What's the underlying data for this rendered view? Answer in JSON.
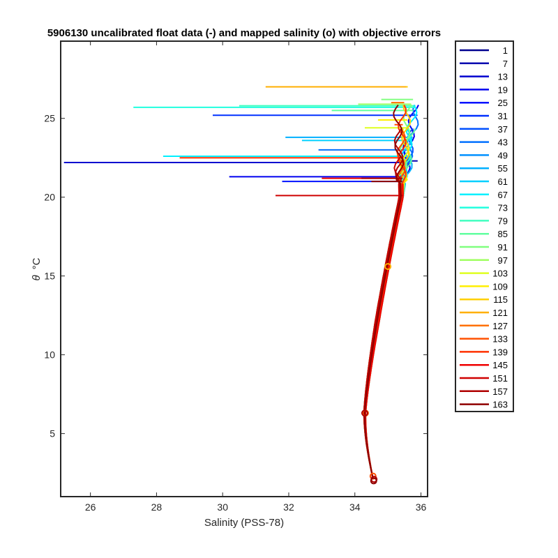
{
  "chart_data": {
    "type": "line",
    "title": "5906130 uncalibrated float data (-) and mapped salinity (o) with objective errors",
    "xlabel": "Salinity (PSS-78)",
    "ylabel_symbol": "θ",
    "ylabel_unit": "°C",
    "xlim": [
      25.1,
      36.2
    ],
    "ylim": [
      1.0,
      29.9
    ],
    "xticks": [
      26,
      28,
      30,
      32,
      34,
      36
    ],
    "yticks": [
      5,
      10,
      15,
      20,
      25
    ],
    "grid": false,
    "legend_position": "outside-right",
    "profile_axis_salinity": 34.3,
    "profile_deep_salinity": 34.55,
    "surface_temperature_range": [
      21.0,
      27.5
    ],
    "series": [
      {
        "name": "1",
        "color": "#00008f",
        "s_surface": 35.85,
        "spike": [
          23.0,
          35.3
        ]
      },
      {
        "name": "7",
        "color": "#0000af",
        "s_surface": 35.9,
        "spike": [
          22.3,
          35.9
        ]
      },
      {
        "name": "13",
        "color": "#0000cf",
        "s_surface": 35.8,
        "spike": [
          22.2,
          25.2
        ]
      },
      {
        "name": "19",
        "color": "#0000ef",
        "s_surface": 35.85,
        "spike": [
          21.3,
          30.2
        ]
      },
      {
        "name": "25",
        "color": "#0010ff",
        "s_surface": 35.9,
        "spike": [
          21.0,
          31.8
        ]
      },
      {
        "name": "31",
        "color": "#0030ff",
        "s_surface": 36.0,
        "spike": [
          25.2,
          29.7
        ]
      },
      {
        "name": "37",
        "color": "#0050ff",
        "s_surface": 36.05,
        "spike": [
          22.6,
          29.7
        ]
      },
      {
        "name": "43",
        "color": "#0070ff",
        "s_surface": 36.0,
        "spike": [
          23.0,
          32.9
        ]
      },
      {
        "name": "49",
        "color": "#0090ff",
        "s_surface": 36.0,
        "spike": [
          22.6,
          32.0
        ]
      },
      {
        "name": "55",
        "color": "#00b0ff",
        "s_surface": 35.95,
        "spike": [
          23.8,
          31.9
        ]
      },
      {
        "name": "61",
        "color": "#00d0ff",
        "s_surface": 35.9,
        "spike": [
          23.6,
          32.4
        ]
      },
      {
        "name": "67",
        "color": "#00f0ff",
        "s_surface": 35.9,
        "spike": [
          22.6,
          28.2
        ]
      },
      {
        "name": "73",
        "color": "#20ffdf",
        "s_surface": 35.85,
        "spike": [
          25.7,
          27.3
        ]
      },
      {
        "name": "79",
        "color": "#40ffbf",
        "s_surface": 35.8,
        "spike": [
          25.8,
          30.5
        ]
      },
      {
        "name": "85",
        "color": "#60ff9f",
        "s_surface": 35.8,
        "spike": [
          25.5,
          33.3
        ]
      },
      {
        "name": "91",
        "color": "#80ff7f",
        "s_surface": 35.75,
        "spike": [
          26.2,
          34.8
        ]
      },
      {
        "name": "97",
        "color": "#9fff60",
        "s_surface": 35.7,
        "spike": [
          25.9,
          34.1
        ]
      },
      {
        "name": "103",
        "color": "#dfff20",
        "s_surface": 35.65,
        "spike": [
          24.4,
          34.3
        ]
      },
      {
        "name": "109",
        "color": "#ffef00",
        "s_surface": 35.6,
        "spike": [
          24.9,
          34.7
        ]
      },
      {
        "name": "115",
        "color": "#ffcf00",
        "s_surface": 35.55,
        "spike": [
          27.0,
          31.4
        ]
      },
      {
        "name": "121",
        "color": "#ffaf00",
        "s_surface": 35.5,
        "spike": [
          27.0,
          31.3
        ]
      },
      {
        "name": "127",
        "color": "#ff7000",
        "s_surface": 35.45,
        "spike": [
          26.0,
          35.1
        ]
      },
      {
        "name": "133",
        "color": "#ff5000",
        "s_surface": 35.4,
        "spike": [
          24.6,
          35.2
        ]
      },
      {
        "name": "139",
        "color": "#ff3000",
        "s_surface": 35.4,
        "spike": [
          22.5,
          28.7
        ]
      },
      {
        "name": "145",
        "color": "#ef0000",
        "s_surface": 35.35,
        "spike": [
          21.2,
          33.0
        ]
      },
      {
        "name": "151",
        "color": "#cf0000",
        "s_surface": 35.3,
        "spike": [
          20.1,
          31.6
        ]
      },
      {
        "name": "157",
        "color": "#af0000",
        "s_surface": 35.3,
        "spike": [
          21.2,
          34.2
        ]
      },
      {
        "name": "163",
        "color": "#8f0000",
        "s_surface": 35.25,
        "spike": [
          21.0,
          34.5
        ]
      }
    ]
  }
}
